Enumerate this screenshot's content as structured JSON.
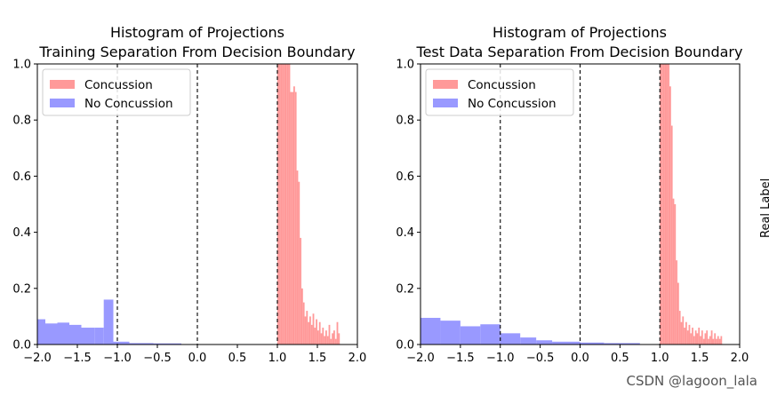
{
  "colors": {
    "concussion": "#ff9999",
    "no_concussion": "#9999ff",
    "axis": "#000000",
    "vline": "#000000"
  },
  "watermark": "CSDN @lagoon_lala",
  "side_label": "Real Label",
  "chart_data": [
    {
      "type": "bar",
      "title": "Histogram of Projections\nTraining Separation From Decision Boundary",
      "xlim": [
        -2.0,
        2.0
      ],
      "ylim": [
        0.0,
        1.0
      ],
      "xticks": [
        "-2.0",
        "-1.5",
        "-1.0",
        "-0.5",
        "0.0",
        "0.5",
        "1.0",
        "1.5",
        "2.0"
      ],
      "yticks": [
        "0.0",
        "0.2",
        "0.4",
        "0.6",
        "0.8",
        "1.0"
      ],
      "vlines": [
        -1.0,
        0.0,
        1.0
      ],
      "legend": {
        "position": "top-left",
        "entries": [
          "Concussion",
          "No Concussion"
        ]
      },
      "series": [
        {
          "name": "Concussion",
          "bins": [
            [
              1.0,
              1.02,
              1.0
            ],
            [
              1.02,
              1.04,
              1.0
            ],
            [
              1.04,
              1.06,
              1.0
            ],
            [
              1.06,
              1.08,
              1.0
            ],
            [
              1.08,
              1.1,
              1.0
            ],
            [
              1.1,
              1.12,
              1.0
            ],
            [
              1.12,
              1.14,
              1.0
            ],
            [
              1.14,
              1.16,
              1.0
            ],
            [
              1.16,
              1.18,
              0.9
            ],
            [
              1.18,
              1.2,
              0.9
            ],
            [
              1.2,
              1.22,
              0.92
            ],
            [
              1.22,
              1.24,
              0.9
            ],
            [
              1.24,
              1.26,
              0.62
            ],
            [
              1.26,
              1.28,
              0.58
            ],
            [
              1.28,
              1.3,
              0.38
            ],
            [
              1.3,
              1.32,
              0.2
            ],
            [
              1.32,
              1.34,
              0.15
            ],
            [
              1.34,
              1.36,
              0.1
            ],
            [
              1.36,
              1.38,
              0.12
            ],
            [
              1.38,
              1.4,
              0.08
            ],
            [
              1.4,
              1.42,
              0.1
            ],
            [
              1.42,
              1.44,
              0.07
            ],
            [
              1.44,
              1.46,
              0.11
            ],
            [
              1.46,
              1.48,
              0.06
            ],
            [
              1.48,
              1.5,
              0.09
            ],
            [
              1.5,
              1.52,
              0.05
            ],
            [
              1.52,
              1.54,
              0.08
            ],
            [
              1.54,
              1.56,
              0.04
            ],
            [
              1.56,
              1.58,
              0.06
            ],
            [
              1.58,
              1.6,
              0.03
            ],
            [
              1.6,
              1.62,
              0.05
            ],
            [
              1.62,
              1.64,
              0.03
            ],
            [
              1.64,
              1.66,
              0.07
            ],
            [
              1.66,
              1.68,
              0.02
            ],
            [
              1.68,
              1.7,
              0.04
            ],
            [
              1.7,
              1.72,
              0.05
            ],
            [
              1.72,
              1.74,
              0.02
            ],
            [
              1.74,
              1.76,
              0.08
            ],
            [
              1.76,
              1.78,
              0.04
            ]
          ]
        },
        {
          "name": "No Concussion",
          "bins": [
            [
              -2.0,
              -1.9,
              0.09
            ],
            [
              -1.9,
              -1.75,
              0.075
            ],
            [
              -1.75,
              -1.6,
              0.078
            ],
            [
              -1.6,
              -1.45,
              0.07
            ],
            [
              -1.45,
              -1.28,
              0.06
            ],
            [
              -1.28,
              -1.17,
              0.06
            ],
            [
              -1.17,
              -1.05,
              0.16
            ],
            [
              -1.05,
              -0.85,
              0.01
            ],
            [
              -0.85,
              -0.55,
              0.005
            ],
            [
              -0.55,
              -0.2,
              0.004
            ]
          ]
        }
      ]
    },
    {
      "type": "bar",
      "title": "Histogram of Projections\nTest Data Separation From Decision Boundary",
      "xlim": [
        -2.0,
        2.0
      ],
      "ylim": [
        0.0,
        1.0
      ],
      "xticks": [
        "-2.0",
        "-1.5",
        "-1.0",
        "-0.5",
        "0.0",
        "0.5",
        "1.0",
        "1.5",
        "2.0"
      ],
      "yticks": [
        "0.0",
        "0.2",
        "0.4",
        "0.6",
        "0.8",
        "1.0"
      ],
      "vlines": [
        -1.0,
        0.0,
        1.0
      ],
      "legend": {
        "position": "top-left",
        "entries": [
          "Concussion",
          "No Concussion"
        ]
      },
      "series": [
        {
          "name": "Concussion",
          "bins": [
            [
              1.0,
              1.02,
              1.0
            ],
            [
              1.02,
              1.04,
              1.0
            ],
            [
              1.04,
              1.06,
              1.0
            ],
            [
              1.06,
              1.08,
              1.0
            ],
            [
              1.08,
              1.1,
              1.0
            ],
            [
              1.1,
              1.12,
              1.0
            ],
            [
              1.12,
              1.14,
              0.92
            ],
            [
              1.14,
              1.16,
              0.78
            ],
            [
              1.16,
              1.18,
              0.52
            ],
            [
              1.18,
              1.2,
              0.5
            ],
            [
              1.2,
              1.22,
              0.3
            ],
            [
              1.22,
              1.24,
              0.22
            ],
            [
              1.24,
              1.26,
              0.12
            ],
            [
              1.26,
              1.28,
              0.08
            ],
            [
              1.28,
              1.3,
              0.1
            ],
            [
              1.3,
              1.32,
              0.06
            ],
            [
              1.32,
              1.34,
              0.08
            ],
            [
              1.34,
              1.36,
              0.05
            ],
            [
              1.36,
              1.38,
              0.07
            ],
            [
              1.38,
              1.4,
              0.04
            ],
            [
              1.4,
              1.42,
              0.06
            ],
            [
              1.42,
              1.44,
              0.03
            ],
            [
              1.44,
              1.46,
              0.05
            ],
            [
              1.46,
              1.48,
              0.04
            ],
            [
              1.48,
              1.5,
              0.06
            ],
            [
              1.5,
              1.52,
              0.03
            ],
            [
              1.52,
              1.54,
              0.05
            ],
            [
              1.54,
              1.56,
              0.02
            ],
            [
              1.56,
              1.58,
              0.04
            ],
            [
              1.58,
              1.6,
              0.05
            ],
            [
              1.6,
              1.62,
              0.02
            ],
            [
              1.62,
              1.64,
              0.03
            ],
            [
              1.64,
              1.66,
              0.05
            ],
            [
              1.66,
              1.68,
              0.02
            ],
            [
              1.68,
              1.7,
              0.04
            ],
            [
              1.7,
              1.72,
              0.02
            ],
            [
              1.72,
              1.74,
              0.03
            ],
            [
              1.74,
              1.76,
              0.02
            ],
            [
              1.76,
              1.78,
              0.03
            ]
          ]
        },
        {
          "name": "No Concussion",
          "bins": [
            [
              -2.0,
              -1.75,
              0.095
            ],
            [
              -1.75,
              -1.5,
              0.085
            ],
            [
              -1.5,
              -1.25,
              0.065
            ],
            [
              -1.25,
              -1.0,
              0.072
            ],
            [
              -1.0,
              -0.75,
              0.04
            ],
            [
              -0.75,
              -0.55,
              0.025
            ],
            [
              -0.55,
              -0.35,
              0.015
            ],
            [
              -0.35,
              0.0,
              0.01
            ],
            [
              0.0,
              0.3,
              0.007
            ],
            [
              0.3,
              0.75,
              0.005
            ]
          ]
        }
      ]
    }
  ]
}
